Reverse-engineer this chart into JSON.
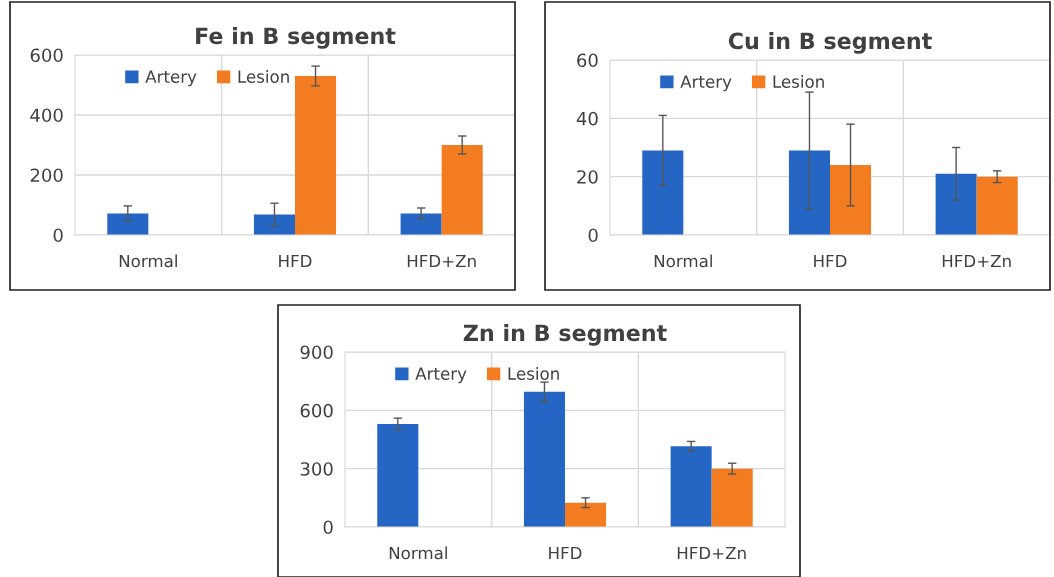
{
  "chart_data": [
    {
      "type": "bar",
      "title": "Fe in B segment",
      "categories": [
        "Normal",
        "HFD",
        "HFD+Zn"
      ],
      "ylim": [
        0,
        600
      ],
      "yticks": [
        0,
        200,
        400,
        600
      ],
      "grid": true,
      "legend": "top left",
      "series": [
        {
          "name": "Artery",
          "color": "#2566c4",
          "values": [
            72,
            68,
            72
          ],
          "errors": [
            25,
            38,
            18
          ]
        },
        {
          "name": "Lesion",
          "color": "#f47c20",
          "values": [
            null,
            530,
            300
          ],
          "errors": [
            null,
            33,
            30
          ]
        }
      ]
    },
    {
      "type": "bar",
      "title": "Cu in B segment",
      "categories": [
        "Normal",
        "HFD",
        "HFD+Zn"
      ],
      "ylim": [
        0,
        60
      ],
      "yticks": [
        0,
        20,
        40,
        60
      ],
      "grid": true,
      "legend": "top left",
      "series": [
        {
          "name": "Artery",
          "color": "#2566c4",
          "values": [
            29,
            29,
            21
          ],
          "errors": [
            12,
            20,
            9
          ]
        },
        {
          "name": "Lesion",
          "color": "#f47c20",
          "values": [
            null,
            24,
            20
          ],
          "errors": [
            null,
            14,
            2
          ]
        }
      ]
    },
    {
      "type": "bar",
      "title": "Zn in B segment",
      "categories": [
        "Normal",
        "HFD",
        "HFD+Zn"
      ],
      "ylim": [
        0,
        900
      ],
      "yticks": [
        0,
        300,
        600,
        900
      ],
      "grid": true,
      "legend": "top left",
      "series": [
        {
          "name": "Artery",
          "color": "#2566c4",
          "values": [
            530,
            695,
            415
          ],
          "errors": [
            30,
            50,
            25
          ]
        },
        {
          "name": "Lesion",
          "color": "#f47c20",
          "values": [
            null,
            125,
            300
          ],
          "errors": [
            null,
            25,
            28
          ]
        }
      ]
    }
  ]
}
